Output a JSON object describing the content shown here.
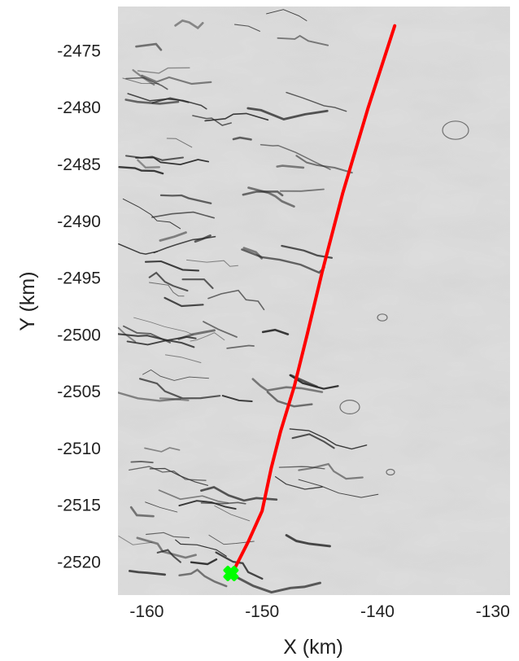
{
  "chart_data": {
    "type": "line",
    "title": "",
    "xlabel": "X (km)",
    "ylabel": "Y (km)",
    "xlim": [
      -162.5,
      -128.5
    ],
    "ylim": [
      -2522.9,
      -2471.1
    ],
    "xticks": [
      -160,
      -150,
      -140,
      -130
    ],
    "yticks": [
      -2475,
      -2480,
      -2485,
      -2490,
      -2495,
      -2500,
      -2505,
      -2510,
      -2515,
      -2520
    ],
    "xtick_labels": [
      "-160",
      "-150",
      "-140",
      "-130"
    ],
    "ytick_labels": [
      "-2475",
      "-2480",
      "-2485",
      "-2490",
      "-2495",
      "-2500",
      "-2505",
      "-2510",
      "-2515",
      "-2520"
    ],
    "grid": false,
    "background": "grayscale satellite imagery of ice surface with dark crevasses",
    "series": [
      {
        "color": "#ff0000",
        "x": [
          -138.5,
          -140.8,
          -143.0,
          -144.8,
          -146.1,
          -147.2,
          -148.4,
          -149.2,
          -150.0,
          -151.2,
          -152.5
        ],
        "y": [
          -2472.8,
          -2480.0,
          -2487.5,
          -2494.5,
          -2500.0,
          -2504.5,
          -2508.5,
          -2511.7,
          -2515.5,
          -2518.2,
          -2520.8
        ]
      }
    ],
    "marker": {
      "x": -152.7,
      "y": -2521.0,
      "color": "#00ff00",
      "shape": "cross"
    }
  }
}
